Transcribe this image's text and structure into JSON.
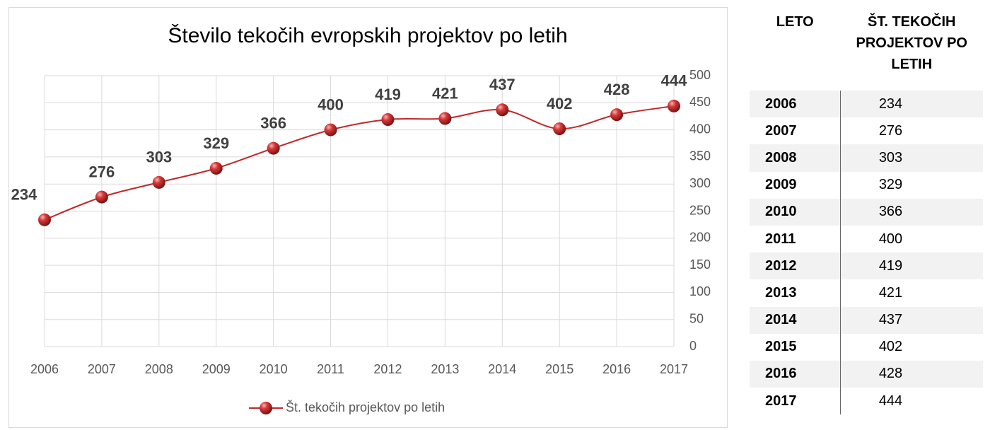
{
  "chart_data": {
    "type": "line",
    "title": "Število tekočih evropskih projektov po letih",
    "categories": [
      "2006",
      "2007",
      "2008",
      "2009",
      "2010",
      "2011",
      "2012",
      "2013",
      "2014",
      "2015",
      "2016",
      "2017"
    ],
    "series": [
      {
        "name": "Št. tekočih projektov po letih",
        "color": "#c0282a",
        "values": [
          234,
          276,
          303,
          329,
          366,
          400,
          419,
          421,
          437,
          402,
          428,
          444
        ]
      }
    ],
    "ylim": [
      0,
      500
    ],
    "yticks": [
      0,
      50,
      100,
      150,
      200,
      250,
      300,
      350,
      400,
      450,
      500
    ],
    "grid": true,
    "y_axis_side": "right",
    "legend": "bottom"
  },
  "table": {
    "headers": [
      "LETO",
      "ŠT. TEKOČIH PROJEKTOV PO LETIH"
    ],
    "rows": [
      [
        "2006",
        "234"
      ],
      [
        "2007",
        "276"
      ],
      [
        "2008",
        "303"
      ],
      [
        "2009",
        "329"
      ],
      [
        "2010",
        "366"
      ],
      [
        "2011",
        "400"
      ],
      [
        "2012",
        "419"
      ],
      [
        "2013",
        "421"
      ],
      [
        "2014",
        "437"
      ],
      [
        "2015",
        "402"
      ],
      [
        "2016",
        "428"
      ],
      [
        "2017",
        "444"
      ]
    ]
  }
}
